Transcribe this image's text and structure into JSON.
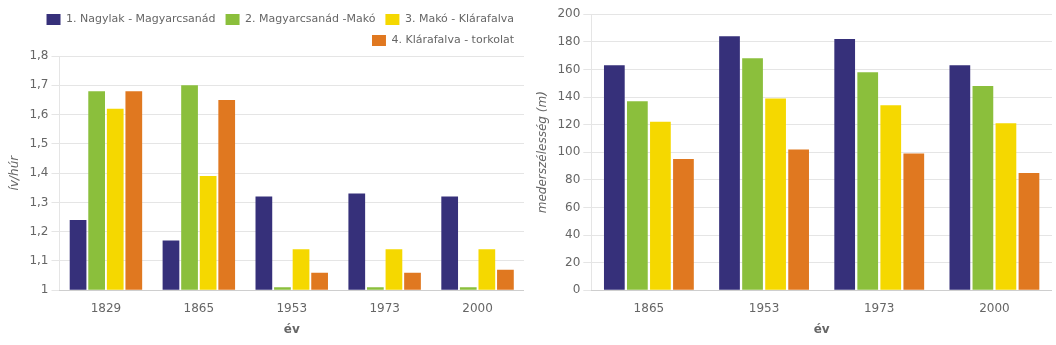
{
  "chart_data": [
    {
      "type": "bar",
      "categories": [
        "1829",
        "1865",
        "1953",
        "1973",
        "2000"
      ],
      "series": [
        {
          "name": "1. Nagylak - Magyarcsanád",
          "color": "#36307a",
          "values": [
            1.24,
            1.17,
            1.32,
            1.33,
            1.32
          ]
        },
        {
          "name": "2. Magyarcsanád -Makó",
          "color": "#8bbf3c",
          "values": [
            1.68,
            1.7,
            1.01,
            1.01,
            1.01
          ]
        },
        {
          "name": "3. Makó - Klárafalva",
          "color": "#f5d800",
          "values": [
            1.62,
            1.39,
            1.14,
            1.14,
            1.14
          ]
        },
        {
          "name": "4. Klárafalva - torkolat",
          "color": "#e07820",
          "values": [
            1.68,
            1.65,
            1.06,
            1.06,
            1.07
          ]
        }
      ],
      "ylabel": "ív/húr",
      "xlabel": "év",
      "ylim": [
        1.0,
        1.8
      ],
      "yticks": [
        1,
        {
          "value": 1.1,
          "label": "1,1"
        },
        {
          "value": 1.2,
          "label": "1,2"
        },
        {
          "value": 1.3,
          "label": "1,3"
        },
        {
          "value": 1.4,
          "label": "1,4"
        },
        {
          "value": 1.5,
          "label": "1,5"
        },
        {
          "value": 1.6,
          "label": "1,6"
        },
        {
          "value": 1.7,
          "label": "1,7"
        },
        {
          "value": 1.8,
          "label": "1,8"
        }
      ],
      "grid": true,
      "legend": "upper right"
    },
    {
      "type": "bar",
      "categories": [
        "1865",
        "1953",
        "1973",
        "2000"
      ],
      "series": [
        {
          "color": "#36307a",
          "values": [
            163,
            184,
            182,
            163
          ]
        },
        {
          "color": "#8bbf3c",
          "values": [
            137,
            168,
            158,
            148
          ]
        },
        {
          "color": "#f5d800",
          "values": [
            122,
            139,
            134,
            121
          ]
        },
        {
          "color": "#e07820",
          "values": [
            95,
            102,
            99,
            85
          ]
        }
      ],
      "ylabel": "mederszélesség (m)",
      "xlabel": "év",
      "ylim": [
        0,
        200
      ],
      "yticks": [
        0,
        20,
        40,
        60,
        80,
        100,
        120,
        140,
        160,
        180,
        200
      ],
      "grid": true
    }
  ]
}
